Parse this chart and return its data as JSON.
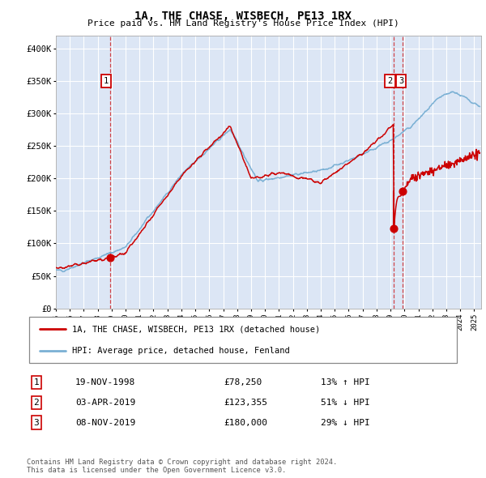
{
  "title": "1A, THE CHASE, WISBECH, PE13 1RX",
  "subtitle": "Price paid vs. HM Land Registry's House Price Index (HPI)",
  "red_label": "1A, THE CHASE, WISBECH, PE13 1RX (detached house)",
  "blue_label": "HPI: Average price, detached house, Fenland",
  "footer": "Contains HM Land Registry data © Crown copyright and database right 2024.\nThis data is licensed under the Open Government Licence v3.0.",
  "transactions": [
    {
      "num": "1",
      "date": "19-NOV-1998",
      "price": "£78,250",
      "change": "13% ↑ HPI"
    },
    {
      "num": "2",
      "date": "03-APR-2019",
      "price": "£123,355",
      "change": "51% ↓ HPI"
    },
    {
      "num": "3",
      "date": "08-NOV-2019",
      "price": "£180,000",
      "change": "29% ↓ HPI"
    }
  ],
  "sale_dates": [
    1998.89,
    2019.25,
    2019.85
  ],
  "sale_prices": [
    78250,
    123355,
    180000
  ],
  "ylim": [
    0,
    420000
  ],
  "xlim_start": 1995.0,
  "xlim_end": 2025.5,
  "bg_color": "#dce6f5",
  "red_color": "#cc0000",
  "blue_color": "#7ab0d4",
  "grid_color": "#ffffff",
  "yticks": [
    0,
    50000,
    100000,
    150000,
    200000,
    250000,
    300000,
    350000,
    400000
  ],
  "ylabels": [
    "£0",
    "£50K",
    "£100K",
    "£150K",
    "£200K",
    "£250K",
    "£300K",
    "£350K",
    "£400K"
  ]
}
